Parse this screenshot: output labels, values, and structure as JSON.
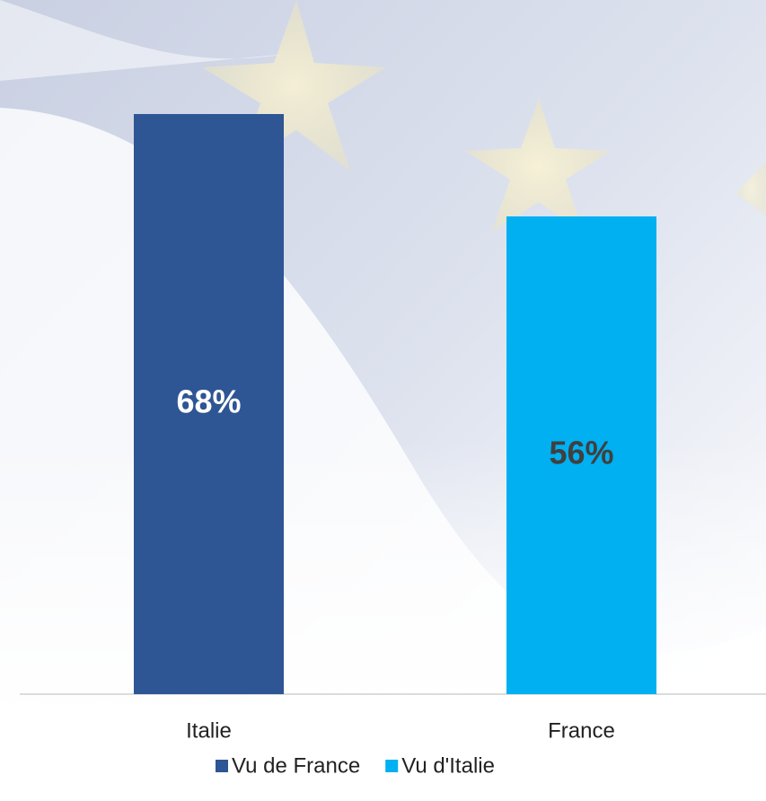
{
  "chart_data": {
    "type": "bar",
    "categories": [
      "Italie",
      "France"
    ],
    "series": [
      {
        "name": "Vu de France",
        "color": "#2e5594",
        "label_color": "#ffffff",
        "values": [
          68,
          null
        ],
        "value_labels": [
          "68%",
          null
        ]
      },
      {
        "name": "Vu d'Italie",
        "color": "#00b0f0",
        "label_color": "#404040",
        "values": [
          null,
          56
        ],
        "value_labels": [
          null,
          "56%"
        ]
      }
    ],
    "ylim": [
      0,
      70
    ]
  }
}
